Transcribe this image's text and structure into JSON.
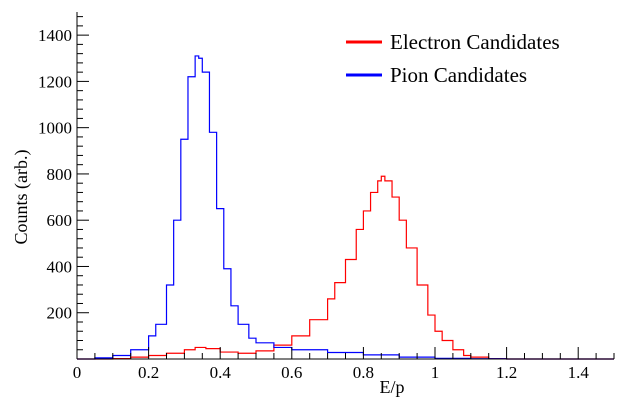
{
  "colors": {
    "electron": "#ff0000",
    "pion": "#0000ff",
    "axis": "#000000",
    "background": "#ffffff"
  },
  "chart_data": {
    "type": "line",
    "title": "",
    "xlabel": "E/p",
    "ylabel": "Counts (arb.)",
    "xlim": [
      0,
      1.5
    ],
    "ylim": [
      0,
      1500
    ],
    "grid": false,
    "legend_position": "top-right",
    "x_ticks": [
      0,
      0.2,
      0.4,
      0.6,
      0.8,
      1,
      1.2,
      1.4
    ],
    "x_tick_labels": [
      "0",
      "0.2",
      "0.4",
      "0.6",
      "0.8",
      "1",
      "1.2",
      "1.4"
    ],
    "y_ticks": [
      200,
      400,
      600,
      800,
      1000,
      1200,
      1400
    ],
    "y_tick_labels": [
      "200",
      "400",
      "600",
      "800",
      "1000",
      "1200",
      "1400"
    ],
    "series": [
      {
        "name": "Electron Candidates",
        "color": "#ff0000",
        "x": [
          0.0,
          0.05,
          0.1,
          0.15,
          0.2,
          0.25,
          0.3,
          0.33,
          0.36,
          0.4,
          0.45,
          0.5,
          0.55,
          0.6,
          0.65,
          0.7,
          0.72,
          0.75,
          0.78,
          0.8,
          0.82,
          0.84,
          0.85,
          0.86,
          0.88,
          0.9,
          0.92,
          0.95,
          0.98,
          1.0,
          1.02,
          1.05,
          1.08,
          1.1,
          1.15,
          1.2,
          1.3,
          1.4,
          1.5
        ],
        "y": [
          0,
          0,
          2,
          8,
          15,
          25,
          40,
          50,
          45,
          30,
          25,
          35,
          60,
          100,
          170,
          260,
          330,
          430,
          560,
          640,
          720,
          770,
          790,
          770,
          700,
          600,
          480,
          320,
          190,
          120,
          80,
          40,
          15,
          8,
          2,
          0,
          0,
          0,
          0
        ]
      },
      {
        "name": "Pion Candidates",
        "color": "#0000ff",
        "x": [
          0.0,
          0.05,
          0.1,
          0.15,
          0.2,
          0.22,
          0.25,
          0.27,
          0.29,
          0.31,
          0.33,
          0.34,
          0.35,
          0.37,
          0.39,
          0.41,
          0.43,
          0.45,
          0.48,
          0.5,
          0.55,
          0.6,
          0.7,
          0.8,
          0.9,
          1.0,
          1.1,
          1.2,
          1.5
        ],
        "y": [
          0,
          5,
          15,
          40,
          100,
          150,
          320,
          600,
          950,
          1220,
          1310,
          1300,
          1240,
          980,
          650,
          390,
          230,
          150,
          90,
          70,
          50,
          40,
          28,
          18,
          8,
          3,
          1,
          0,
          0
        ]
      }
    ]
  }
}
